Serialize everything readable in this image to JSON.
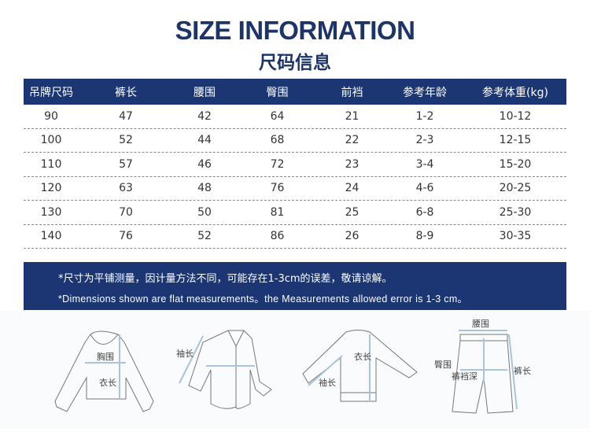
{
  "title": "SIZE INFORMATION",
  "subtitle": "尺码信息",
  "table": {
    "headers": [
      "吊牌尺码",
      "裤长",
      "腰围",
      "臀围",
      "前裆",
      "参考年龄",
      "参考体重(kg)"
    ],
    "rows": [
      [
        "90",
        "47",
        "42",
        "64",
        "21",
        "1-2",
        "10-12"
      ],
      [
        "100",
        "52",
        "44",
        "68",
        "22",
        "2-3",
        "12-15"
      ],
      [
        "110",
        "57",
        "46",
        "72",
        "23",
        "3-4",
        "15-20"
      ],
      [
        "120",
        "63",
        "48",
        "76",
        "24",
        "4-6",
        "20-25"
      ],
      [
        "130",
        "70",
        "50",
        "81",
        "25",
        "6-8",
        "25-30"
      ],
      [
        "140",
        "76",
        "52",
        "86",
        "26",
        "8-9",
        "30-35"
      ]
    ]
  },
  "note": {
    "line1": "*尺寸为平铺测量，因计量方法不同，可能存在1-3cm的误差，敬请谅解。",
    "line2": "*Dimensions shown are flat measurements。the Measurements allowed error is 1-3 cm。"
  },
  "diagrams": {
    "tshirt": {
      "chest": "胸围",
      "length": "衣长"
    },
    "shirt": {
      "sleeve": "袖长"
    },
    "sweater": {
      "length": "衣长",
      "sleeve": "袖长"
    },
    "pants": {
      "waist": "腰围",
      "hip": "臀围",
      "rise": "裤裆深",
      "length": "裤长"
    }
  },
  "colors": {
    "navy": "#1b3673",
    "measure": "#a9c4dc"
  }
}
